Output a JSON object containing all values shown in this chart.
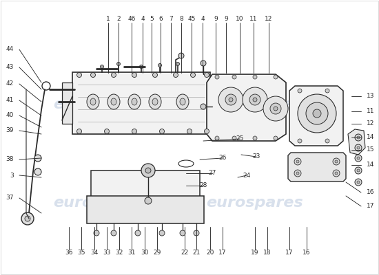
{
  "bg_color": "#ffffff",
  "line_color": "#2a2a2a",
  "light_fill": "#f2f2f2",
  "mid_fill": "#e8e8e8",
  "watermark": "eurospares",
  "wm_color": "#c8d4e4",
  "top_labels": [
    [
      "1",
      157,
      28
    ],
    [
      "2",
      172,
      28
    ],
    [
      "46",
      191,
      28
    ],
    [
      "4",
      207,
      28
    ],
    [
      "5",
      220,
      28
    ],
    [
      "6",
      233,
      28
    ],
    [
      "7",
      248,
      28
    ],
    [
      "8",
      263,
      28
    ],
    [
      "45",
      278,
      28
    ],
    [
      "4",
      294,
      28
    ],
    [
      "9",
      313,
      28
    ],
    [
      "9",
      328,
      28
    ],
    [
      "10",
      348,
      28
    ],
    [
      "11",
      368,
      28
    ],
    [
      "12",
      390,
      28
    ]
  ],
  "left_labels": [
    [
      "44",
      20,
      72
    ],
    [
      "43",
      20,
      98
    ],
    [
      "42",
      20,
      122
    ],
    [
      "41",
      20,
      146
    ],
    [
      "40",
      20,
      168
    ],
    [
      "39",
      20,
      190
    ],
    [
      "3",
      20,
      255
    ],
    [
      "38",
      20,
      232
    ],
    [
      "37",
      20,
      288
    ]
  ],
  "right_labels": [
    [
      "13",
      532,
      140
    ],
    [
      "11",
      532,
      162
    ],
    [
      "12",
      532,
      180
    ],
    [
      "14",
      532,
      200
    ],
    [
      "15",
      532,
      218
    ],
    [
      "14",
      532,
      240
    ],
    [
      "16",
      532,
      280
    ],
    [
      "17",
      532,
      300
    ]
  ],
  "bottom_labels": [
    [
      "36",
      100,
      368
    ],
    [
      "35",
      118,
      368
    ],
    [
      "34",
      137,
      368
    ],
    [
      "33",
      155,
      368
    ],
    [
      "32",
      173,
      368
    ],
    [
      "31",
      191,
      368
    ],
    [
      "30",
      210,
      368
    ],
    [
      "29",
      228,
      368
    ],
    [
      "22",
      268,
      368
    ],
    [
      "21",
      285,
      368
    ],
    [
      "20",
      305,
      368
    ],
    [
      "17",
      323,
      368
    ],
    [
      "19",
      370,
      368
    ],
    [
      "18",
      388,
      368
    ],
    [
      "17",
      420,
      368
    ],
    [
      "16",
      445,
      368
    ]
  ],
  "mid_labels": [
    [
      "25",
      348,
      202
    ],
    [
      "26",
      323,
      230
    ],
    [
      "23",
      372,
      228
    ],
    [
      "27",
      308,
      252
    ],
    [
      "24",
      358,
      255
    ],
    [
      "28",
      295,
      270
    ]
  ]
}
